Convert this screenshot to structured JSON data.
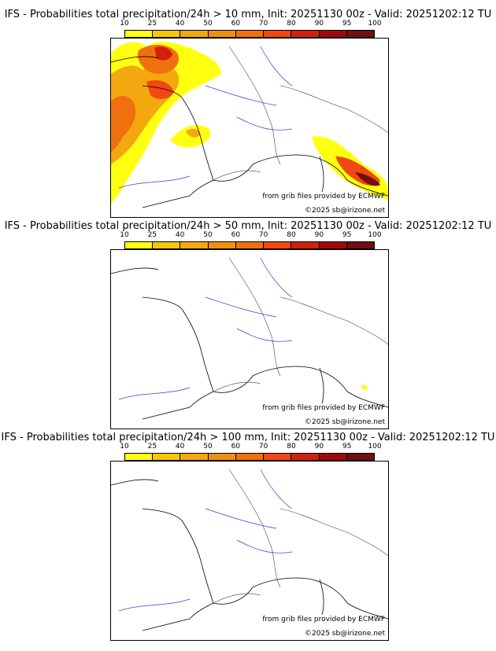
{
  "colorbar": {
    "ticks": [
      "10",
      "25",
      "40",
      "50",
      "60",
      "70",
      "80",
      "90",
      "95",
      "100"
    ],
    "colors": [
      "#ffff10",
      "#f8c808",
      "#f4a810",
      "#f09010",
      "#f07010",
      "#f04810",
      "#d02010",
      "#a00810",
      "#701010"
    ]
  },
  "panels": [
    {
      "title": "IFS - Probabilities total precipitation/24h > 10 mm, Init: 20251130 00z - Valid: 20251202:12 TU",
      "credit": "from grib files provided by ECMWF",
      "copyright": "©2025 sb@irizone.net"
    },
    {
      "title": "IFS - Probabilities total precipitation/24h > 50 mm, Init: 20251130 00z - Valid: 20251202:12 TU",
      "credit": "from grib files provided by ECMWF",
      "copyright": "©2025 sb@irizone.net"
    },
    {
      "title": "IFS - Probabilities total precipitation/24h > 100 mm, Init: 20251130 00z - Valid: 20251202:12 TU",
      "credit": "from grib files provided by ECMWF",
      "copyright": "©2025 sb@irizone.net"
    }
  ]
}
